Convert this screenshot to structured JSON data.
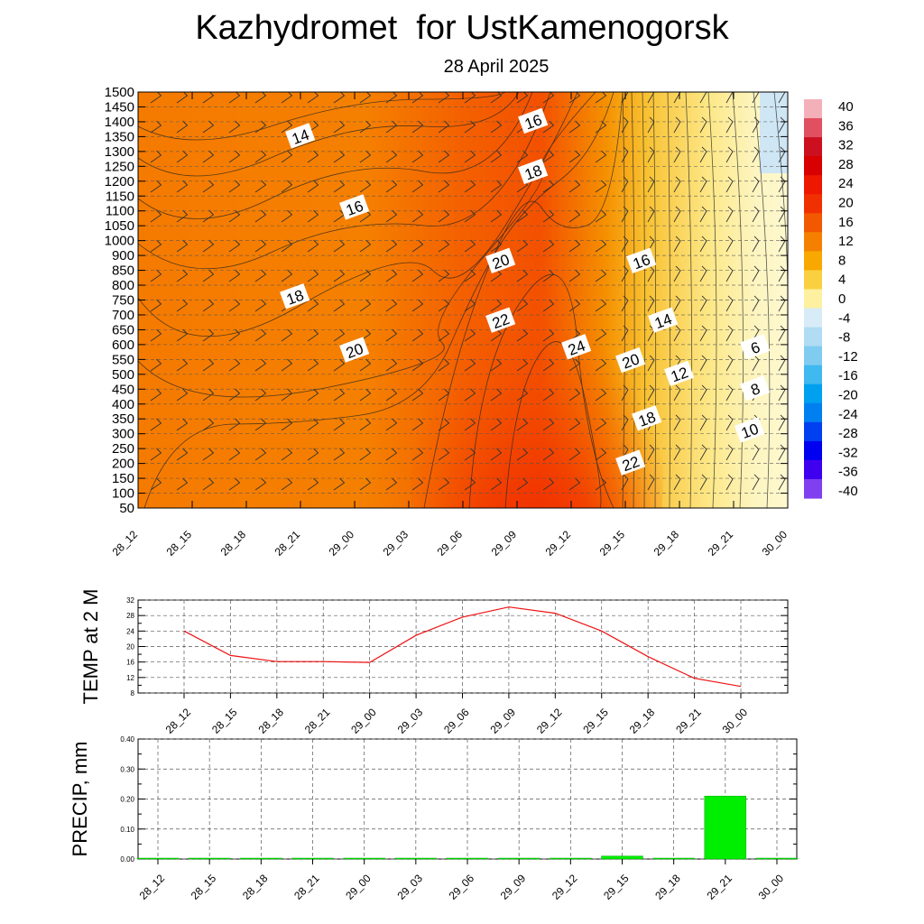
{
  "title": "Kazhydromet  for UstKamenogorsk",
  "subtitle": "28 April 2025",
  "time_labels": [
    "28_12",
    "28_15",
    "28_18",
    "28_21",
    "29_00",
    "29_03",
    "29_06",
    "29_09",
    "29_12",
    "29_15",
    "29_18",
    "29_21",
    "30_00"
  ],
  "chart_data": [
    {
      "type": "heatmap",
      "name": "temperature-cross-section",
      "x_labels": [
        "28_12",
        "28_15",
        "28_18",
        "28_21",
        "29_00",
        "29_03",
        "29_06",
        "29_09",
        "29_12",
        "29_15",
        "29_18",
        "29_21",
        "30_00"
      ],
      "y_ticks": [
        1500,
        1450,
        1400,
        1350,
        1300,
        1250,
        1200,
        1150,
        1100,
        1050,
        1000,
        900,
        850,
        800,
        750,
        700,
        650,
        600,
        550,
        500,
        450,
        400,
        350,
        300,
        250,
        200,
        150,
        100,
        50
      ],
      "colorbar": {
        "labels": [
          "40",
          "36",
          "32",
          "28",
          "24",
          "20",
          "16",
          "12",
          "8",
          "4",
          "0",
          "-4",
          "-8",
          "-12",
          "-16",
          "-20",
          "-24",
          "-28",
          "-32",
          "-36",
          "-40"
        ],
        "colors": [
          "#f4b0b8",
          "#e05060",
          "#cc1020",
          "#d80000",
          "#ee1800",
          "#f03000",
          "#f25800",
          "#f58000",
          "#f8a800",
          "#fbd040",
          "#fdf0a0",
          "#d8ecf8",
          "#b0dcf4",
          "#80ccf0",
          "#40b8f0",
          "#00a0f0",
          "#0080f0",
          "#0040f0",
          "#0000f0",
          "#4000f0",
          "#8040f0"
        ]
      },
      "contour_labels": [
        {
          "text": "14",
          "time": 3.0,
          "level": 1350
        },
        {
          "text": "16",
          "time": 7.3,
          "level": 1400
        },
        {
          "text": "18",
          "time": 7.3,
          "level": 1230
        },
        {
          "text": "16",
          "time": 4.0,
          "level": 1110
        },
        {
          "text": "20",
          "time": 6.7,
          "level": 880
        },
        {
          "text": "16",
          "time": 9.3,
          "level": 880
        },
        {
          "text": "18",
          "time": 2.9,
          "level": 760
        },
        {
          "text": "22",
          "time": 6.7,
          "level": 680
        },
        {
          "text": "14",
          "time": 9.7,
          "level": 680
        },
        {
          "text": "24",
          "time": 8.1,
          "level": 590
        },
        {
          "text": "20",
          "time": 4.0,
          "level": 580
        },
        {
          "text": "6",
          "time": 11.4,
          "level": 590
        },
        {
          "text": "20",
          "time": 9.1,
          "level": 545
        },
        {
          "text": "12",
          "time": 10.0,
          "level": 500
        },
        {
          "text": "8",
          "time": 11.4,
          "level": 450
        },
        {
          "text": "18",
          "time": 9.4,
          "level": 350
        },
        {
          "text": "10",
          "time": 11.3,
          "level": 310
        },
        {
          "text": "22",
          "time": 9.1,
          "level": 200
        }
      ]
    },
    {
      "type": "line",
      "ylabel": "TEMP at 2 M",
      "categories": [
        "28_12",
        "28_15",
        "28_18",
        "28_21",
        "29_00",
        "29_03",
        "29_06",
        "29_09",
        "29_12",
        "29_15",
        "29_18",
        "29_21",
        "30_00"
      ],
      "values": [
        24,
        17.7,
        16.1,
        16.1,
        15.9,
        22.9,
        27.6,
        30.2,
        28.6,
        24,
        17.4,
        11.8,
        9.7
      ],
      "yticks": [
        "32",
        "28",
        "24",
        "20",
        "16",
        "12",
        "8"
      ],
      "ylim": [
        8,
        32
      ],
      "color": "#ee1111"
    },
    {
      "type": "bar",
      "ylabel": "PRECIP, mm",
      "categories": [
        "28_12",
        "28_15",
        "28_18",
        "28_21",
        "29_00",
        "29_03",
        "29_06",
        "29_09",
        "29_12",
        "29_15",
        "29_18",
        "29_21",
        "30_00"
      ],
      "values": [
        0,
        0,
        0,
        0,
        0,
        0,
        0,
        0,
        0,
        0.01,
        0,
        0.21,
        0
      ],
      "yticks": [
        "0.40",
        "0.30",
        "0.20",
        "0.10",
        "0.00"
      ],
      "ylim": [
        0,
        0.4
      ],
      "color": "#00ee00"
    }
  ]
}
